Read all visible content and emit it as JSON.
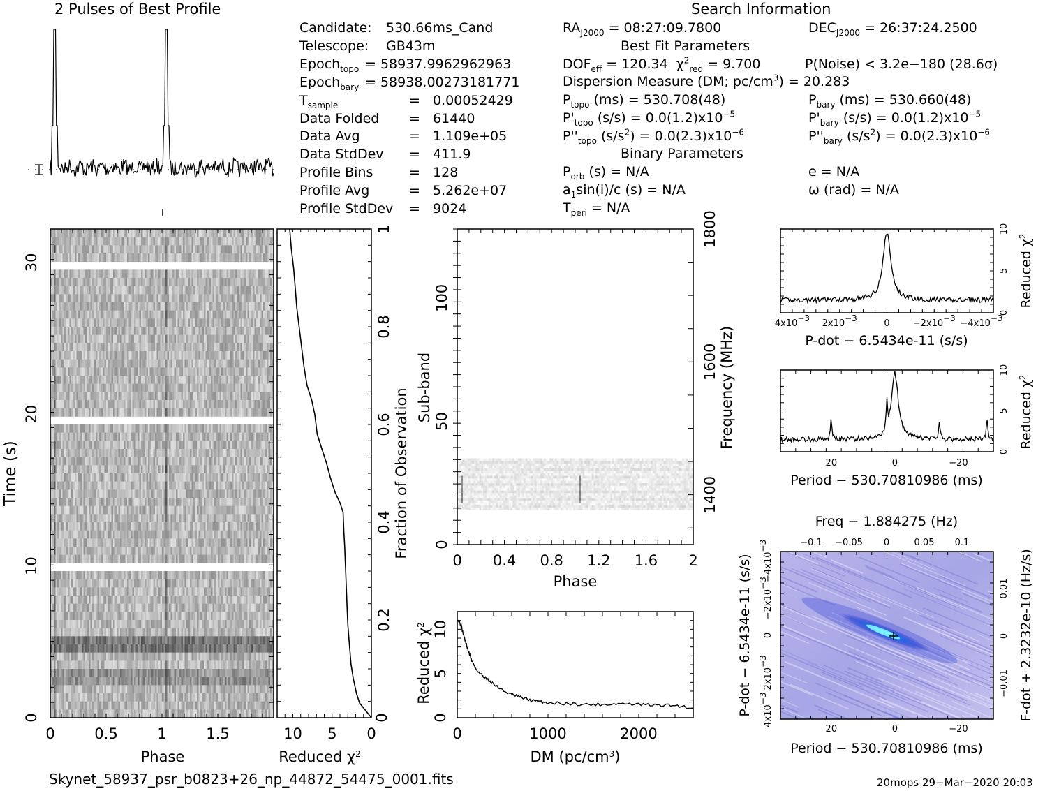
{
  "header": {
    "profile_title": "2 Pulses of Best Profile",
    "search_title": "Search Information",
    "best_fit_title": "Best Fit Parameters",
    "binary_title": "Binary Parameters"
  },
  "info_left": [
    {
      "label": "Candidate:",
      "value": "530.66ms_Cand"
    },
    {
      "label": "Telescope:",
      "value": "GB43m"
    },
    {
      "label": "Epoch",
      "sub": "topo",
      "value": "= 58937.9962962963"
    },
    {
      "label": "Epoch",
      "sub": "bary",
      "value": "= 58938.00273181771"
    },
    {
      "label": "T",
      "sub": "sample",
      "value": "=   0.00052429"
    },
    {
      "label": "Data Folded",
      "value": "=   61440"
    },
    {
      "label": "Data Avg",
      "value": "=   1.109e+05"
    },
    {
      "label": "Data StdDev",
      "value": "=   411.9"
    },
    {
      "label": "Profile Bins",
      "value": "=   128"
    },
    {
      "label": "Profile Avg",
      "value": "=   5.262e+07"
    },
    {
      "label": "Profile StdDev",
      "value": "=   9024"
    }
  ],
  "info": {
    "ra_label": "RA",
    "ra_sub": "J2000",
    "ra_value": "= 08:27:09.7800",
    "dec_label": "DEC",
    "dec_sub": "J2000",
    "dec_value": "= 26:37:24.2500",
    "dof_label": "DOF",
    "dof_sub": "eff",
    "dof_value": "= 120.34",
    "chi_label": "χ",
    "chi_sup": "2",
    "chi_sub": "red",
    "chi_value": "= 9.700",
    "pnoise": "P(Noise) < 3.2e−180   (28.6σ)",
    "dm_text": "Dispersion Measure (DM; pc/cm",
    "dm_sup": "3",
    "dm_value": ") = 20.283",
    "ptopo_label": "P",
    "ptopo_sub": "topo",
    "ptopo_value": " (ms) =  530.708(48)",
    "pbary_label": "P",
    "pbary_sub": "bary",
    "pbary_value": " (ms) =  530.660(48)",
    "pdtopo_label": "P'",
    "pdtopo_sub": "topo",
    "pdtopo_value": " (s/s) = 0.0(1.2)x10",
    "pdtopo_exp": "−5",
    "pdbary_label": "P'",
    "pdbary_sub": "bary",
    "pdbary_value": " (s/s) = 0.0(1.2)x10",
    "pdbary_exp": "−5",
    "pddtopo_label": "P''",
    "pddtopo_sub": "topo",
    "pddtopo_value": " (s/s",
    "pddtopo_sup": "2",
    "pddtopo_value2": ") = 0.0(2.3)x10",
    "pddtopo_exp": "−6",
    "pddbary_label": "P''",
    "pddbary_sub": "bary",
    "pddbary_value": " (s/s",
    "pddbary_sup": "2",
    "pddbary_value2": ") = 0.0(2.3)x10",
    "pddbary_exp": "−6",
    "porb_label": "P",
    "porb_sub": "orb",
    "porb_value": " (s) = N/A",
    "e_text": "e = N/A",
    "a1_label": "a",
    "a1_sub": "1",
    "a1_value": "sin(i)/c (s) = N/A",
    "omega_text": "ω (rad) = N/A",
    "tperi_label": "T",
    "tperi_sub": "peri",
    "tperi_value": " = N/A"
  },
  "footer": {
    "filename": "Skynet_58937_psr_b0823+26_np_44872_54475_0001.fits",
    "stamp": "20mops 29−Mar−2020 20:03"
  },
  "chart_data": [
    {
      "id": "profile",
      "type": "line",
      "title": "2 Pulses of Best Profile",
      "x_range": [
        0,
        2
      ],
      "peaks_at_phase": [
        0.04,
        1.04
      ]
    },
    {
      "id": "time-phase",
      "type": "heatmap",
      "xlabel": "Phase",
      "ylabel": "Time (s)",
      "xlim": [
        0,
        2
      ],
      "ylim": [
        0,
        32.2
      ],
      "x_ticks": [
        "0",
        "0.5",
        "1",
        "1.5"
      ],
      "y_ticks": [
        "0",
        "10",
        "20",
        "30"
      ]
    },
    {
      "id": "time-chi2",
      "type": "line",
      "xlabel": "Reduced χ",
      "xlabel_sup": "2",
      "ylabel": "Fraction of Observation",
      "xlim": [
        12,
        0
      ],
      "ylim": [
        0,
        1
      ],
      "x_ticks": [
        "10",
        "5",
        "0"
      ],
      "y_ticks": [
        "0.2",
        "0.4",
        "0.6",
        "0.8",
        "1"
      ],
      "points": [
        [
          0,
          0
        ],
        [
          0.5,
          0.01
        ],
        [
          1.0,
          0.02
        ],
        [
          1.5,
          0.03
        ],
        [
          1.9,
          0.05
        ],
        [
          2.3,
          0.08
        ],
        [
          2.6,
          0.11
        ],
        [
          2.8,
          0.15
        ],
        [
          3.0,
          0.19
        ],
        [
          3.1,
          0.23
        ],
        [
          3.2,
          0.27
        ],
        [
          3.3,
          0.31
        ],
        [
          3.4,
          0.35
        ],
        [
          3.5,
          0.38
        ],
        [
          3.6,
          0.42
        ],
        [
          4.0,
          0.44
        ],
        [
          4.6,
          0.46
        ],
        [
          5.2,
          0.49
        ],
        [
          5.7,
          0.52
        ],
        [
          6.3,
          0.55
        ],
        [
          6.9,
          0.58
        ],
        [
          7.2,
          0.62
        ],
        [
          7.6,
          0.65
        ],
        [
          8.2,
          0.68
        ],
        [
          8.6,
          0.72
        ],
        [
          8.9,
          0.76
        ],
        [
          9.2,
          0.8
        ],
        [
          9.5,
          0.84
        ],
        [
          9.7,
          0.88
        ],
        [
          9.9,
          0.92
        ],
        [
          10.2,
          0.96
        ],
        [
          10.4,
          1.0
        ]
      ]
    },
    {
      "id": "subband",
      "type": "heatmap",
      "xlabel": "Phase",
      "ylabel": "Sub-band",
      "y2label": "Frequency (MHz)",
      "xlim": [
        0,
        2
      ],
      "ylim": [
        0,
        128
      ],
      "x_ticks": [
        "0",
        "0.4",
        "0.8",
        "1.2",
        "1.6",
        "2"
      ],
      "y_ticks": [
        "0",
        "50",
        "100"
      ],
      "y2_ticks": [
        "1400",
        "1600",
        "1800"
      ],
      "filled_subbands": [
        14,
        35
      ]
    },
    {
      "id": "dm-chi2",
      "type": "line",
      "xlabel": "DM (pc/cm",
      "xlabel_sup": "3",
      "xlabel_end": ")",
      "ylabel": "Reduced χ",
      "ylabel_sup": "2",
      "xlim": [
        0,
        2600
      ],
      "ylim": [
        0,
        12
      ],
      "x_ticks": [
        "0",
        "1000",
        "2000"
      ],
      "y_ticks": [
        "0",
        "5",
        "10"
      ],
      "points": [
        [
          0,
          11.2
        ],
        [
          40,
          10.5
        ],
        [
          80,
          9
        ],
        [
          120,
          7.6
        ],
        [
          160,
          6.5
        ],
        [
          200,
          5.6
        ],
        [
          250,
          5.0
        ],
        [
          300,
          4.6
        ],
        [
          400,
          3.8
        ],
        [
          500,
          3.1
        ],
        [
          600,
          2.6
        ],
        [
          700,
          2.3
        ],
        [
          800,
          2.0
        ],
        [
          900,
          1.8
        ],
        [
          1000,
          1.7
        ],
        [
          1200,
          1.6
        ],
        [
          1400,
          1.5
        ],
        [
          1600,
          1.5
        ],
        [
          1800,
          1.6
        ],
        [
          2000,
          1.5
        ],
        [
          2200,
          1.4
        ],
        [
          2400,
          1.4
        ],
        [
          2600,
          1.1
        ]
      ]
    },
    {
      "id": "pdot-chi2",
      "type": "line",
      "xlabel": "P-dot − 6.5434e-11 (s/s)",
      "ylabel": "Reduced χ",
      "ylabel_sup": "2",
      "xlim": [
        0.0045,
        -0.0045
      ],
      "ylim": [
        0,
        10
      ],
      "x_ticks": [
        "4x10",
        "2x10",
        "0",
        "−2x10",
        "−4x10"
      ],
      "x_tick_exp": "−3",
      "y_ticks": [
        "0",
        "5",
        "10"
      ],
      "peak": {
        "x": 0,
        "y": 9.6
      },
      "baseline": 1.5
    },
    {
      "id": "period-chi2",
      "type": "line",
      "xlabel": "Period − 530.70810986 (ms)",
      "ylabel": "Reduced χ",
      "ylabel_sup": "2",
      "xlim": [
        36,
        -31
      ],
      "ylim": [
        0,
        10
      ],
      "x_ticks": [
        "20",
        "0",
        "−20"
      ],
      "y_ticks": [
        "0",
        "5",
        "10"
      ],
      "peaks": [
        {
          "x": 0,
          "y": 9.6
        },
        {
          "x": 20,
          "y": 4.2
        },
        {
          "x": 2.5,
          "y": 4.8
        },
        {
          "x": -14,
          "y": 3.8
        },
        {
          "x": -29,
          "y": 4.0
        }
      ],
      "baseline": 1.5
    },
    {
      "id": "ppdot-plane",
      "type": "heatmap",
      "top_label": "Freq − 1.884275 (Hz)",
      "xlabel": "Period − 530.70810986 (ms)",
      "ylabel": "P-dot − 6.5434e-11 (s/s)",
      "y2label": "F-dot + 2.3232e-10 (Hz/s)",
      "xlim": [
        36,
        -31
      ],
      "x_ticks": [
        "20",
        "0",
        "−20"
      ],
      "top_ticks": [
        "−0.1",
        "−0.05",
        "0",
        "0.05",
        "0.1"
      ],
      "y_ticks": [
        "4x10",
        "2x10",
        "0",
        "−2x10",
        "−4x10"
      ],
      "y_tick_exp": "−3",
      "y2_ticks": [
        "−0.01",
        "0",
        "0.01"
      ]
    }
  ]
}
